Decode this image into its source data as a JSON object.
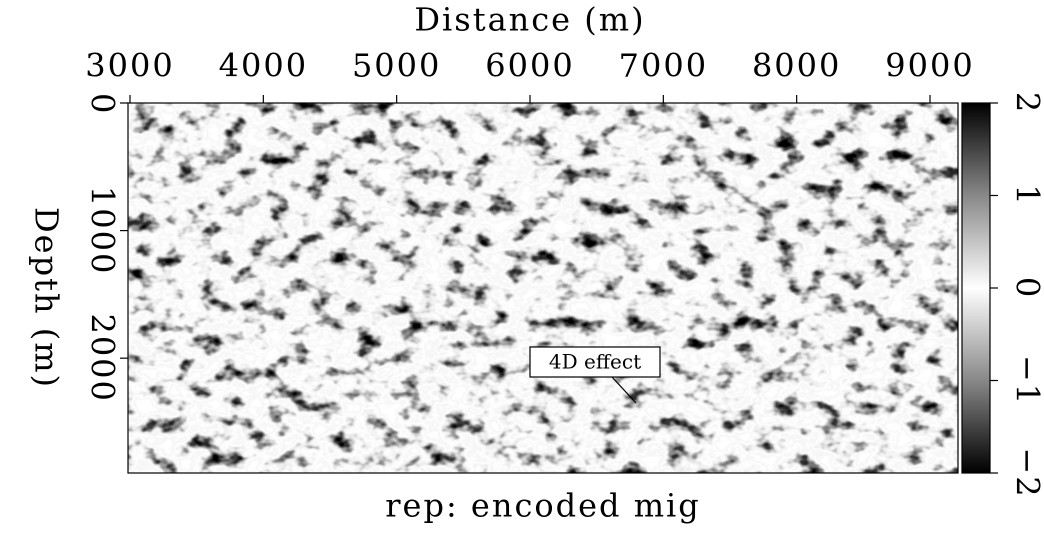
{
  "chart_data": {
    "type": "heatmap",
    "title": "rep: encoded mig",
    "x_label": "Distance (m)",
    "y_label": "Depth (m)",
    "xlim": [
      2985,
      9210
    ],
    "xticks": [
      3000,
      4000,
      5000,
      6000,
      7000,
      8000,
      9000
    ],
    "ylim": [
      0,
      2900
    ],
    "yticks": [
      0,
      1000,
      2000
    ],
    "y_inverted": true,
    "colorbar": {
      "lim": [
        -2,
        2
      ],
      "ticks": [
        {
          "value": -2,
          "label": "−2"
        },
        {
          "value": -1,
          "label": "−1"
        },
        0,
        1,
        2
      ]
    },
    "annotations": [
      "4D effect"
    ]
  }
}
